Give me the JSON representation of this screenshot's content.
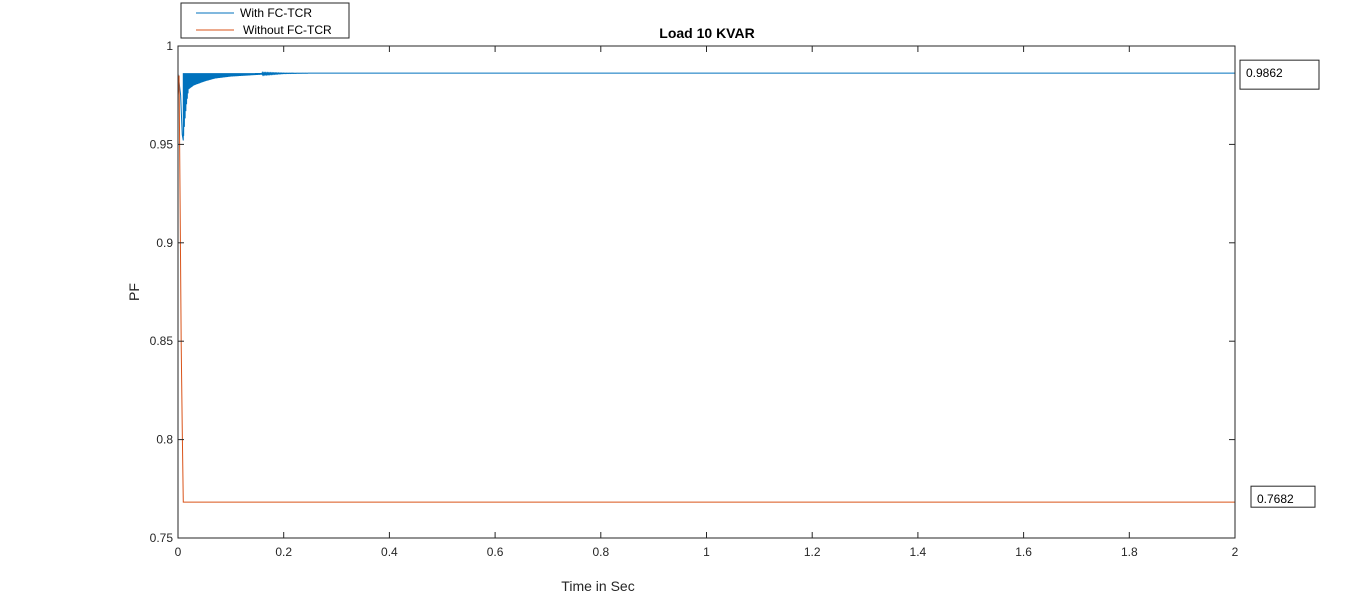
{
  "chart_data": {
    "type": "line",
    "title": "Load 10 KVAR",
    "xlabel": "Time in Sec",
    "ylabel": "PF",
    "xlim": [
      0,
      2
    ],
    "ylim": [
      0.75,
      1
    ],
    "x_ticks": [
      0,
      0.2,
      0.4,
      0.6,
      0.8,
      1,
      1.2,
      1.4,
      1.6,
      1.8,
      2
    ],
    "x_tick_labels": [
      "0",
      "0.2",
      "0.4",
      "0.6",
      "0.8",
      "1",
      "1.2",
      "1.4",
      "1.6",
      "1.8",
      "2"
    ],
    "y_ticks": [
      0.75,
      0.8,
      0.85,
      0.9,
      0.95,
      1
    ],
    "y_tick_labels": [
      "0.75",
      "0.8",
      "0.85",
      "0.9",
      "0.95",
      "1"
    ],
    "grid": false,
    "legend_position": "top-left-outside",
    "series": [
      {
        "name": "With FC-TCR",
        "color": "#0072BD",
        "x": [
          0,
          0.005,
          0.008,
          0.01,
          0.013,
          0.016,
          0.02,
          0.025,
          0.03,
          0.04,
          0.05,
          0.07,
          0.1,
          0.13,
          0.16,
          0.2,
          0.25,
          0.3,
          2
        ],
        "y": [
          0.986,
          0.975,
          0.955,
          0.952,
          0.962,
          0.97,
          0.978,
          0.979,
          0.98,
          0.981,
          0.982,
          0.9835,
          0.9845,
          0.985,
          0.9855,
          0.986,
          0.9862,
          0.9862,
          0.9862
        ]
      },
      {
        "name": "Without FC-TCR",
        "color": "#D95319",
        "x": [
          0,
          0.002,
          0.004,
          0.006,
          0.008,
          0.01,
          0.012,
          2
        ],
        "y": [
          0.975,
          0.985,
          0.92,
          0.85,
          0.806,
          0.7682,
          0.7682,
          0.7682
        ]
      }
    ],
    "annotations": [
      {
        "text": "0.9862",
        "x": 2,
        "y": 0.9862
      },
      {
        "text": "0.7682",
        "x": 2,
        "y": 0.7682
      }
    ]
  }
}
